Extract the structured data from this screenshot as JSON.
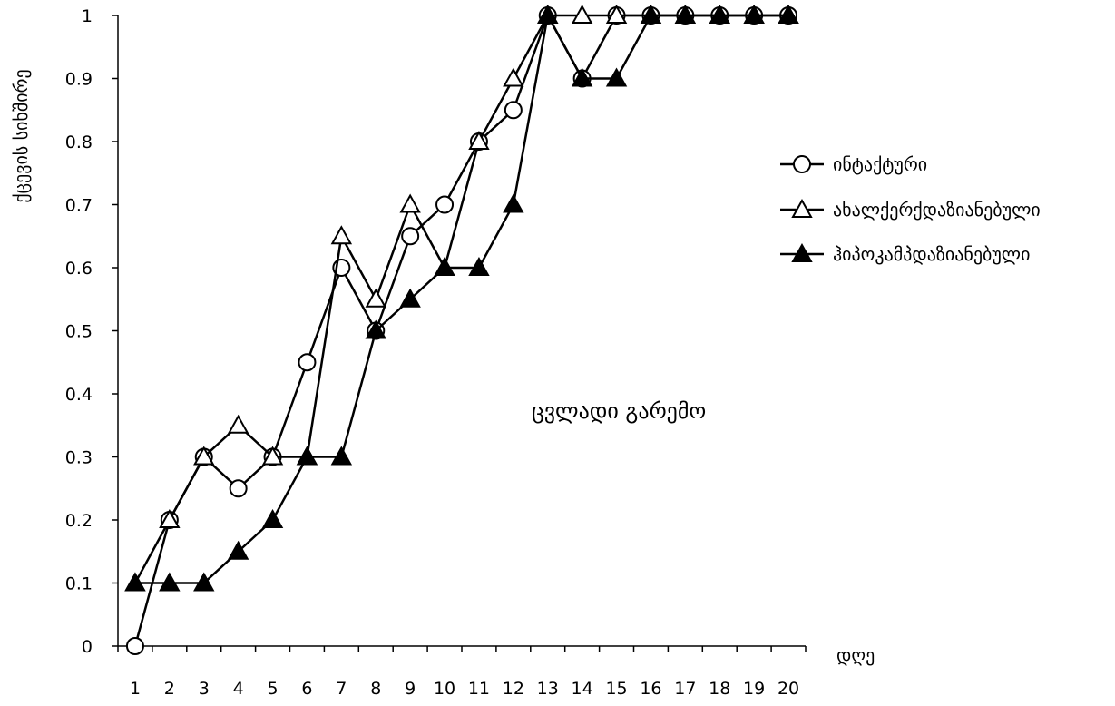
{
  "chart_data": {
    "type": "line",
    "title": "",
    "xlabel": "დღე",
    "ylabel": "ქცევის სიხშირე",
    "annotation": "ცვლადი გარემო",
    "x": [
      1,
      2,
      3,
      4,
      5,
      6,
      7,
      8,
      9,
      10,
      11,
      12,
      13,
      14,
      15,
      16,
      17,
      18,
      19,
      20
    ],
    "ylim": [
      0,
      1
    ],
    "yticks": [
      0,
      0.1,
      0.2,
      0.3,
      0.4,
      0.5,
      0.6,
      0.7,
      0.8,
      0.9,
      1
    ],
    "grid": false,
    "legend_position": "right",
    "series": [
      {
        "name": "ინტაქტური",
        "marker": "circle-open",
        "color": "#000000",
        "values": [
          0,
          0.2,
          0.3,
          0.25,
          0.3,
          0.45,
          0.6,
          0.5,
          0.65,
          0.7,
          0.8,
          0.85,
          1,
          0.9,
          1,
          1,
          1,
          1,
          1,
          1
        ]
      },
      {
        "name": "ახალქერქდაზიანებული",
        "marker": "triangle-open",
        "color": "#000000",
        "values": [
          0.1,
          0.2,
          0.3,
          0.35,
          0.3,
          0.3,
          0.65,
          0.55,
          0.7,
          0.6,
          0.8,
          0.9,
          1,
          1,
          1,
          1,
          1,
          1,
          1,
          1
        ]
      },
      {
        "name": "ჰიპოკამპდაზიანებული",
        "marker": "triangle-filled",
        "color": "#000000",
        "values": [
          0.1,
          0.1,
          0.1,
          0.15,
          0.2,
          0.3,
          0.3,
          0.5,
          0.55,
          0.6,
          0.6,
          0.7,
          1,
          0.9,
          0.9,
          1,
          1,
          1,
          1,
          1
        ]
      }
    ]
  }
}
